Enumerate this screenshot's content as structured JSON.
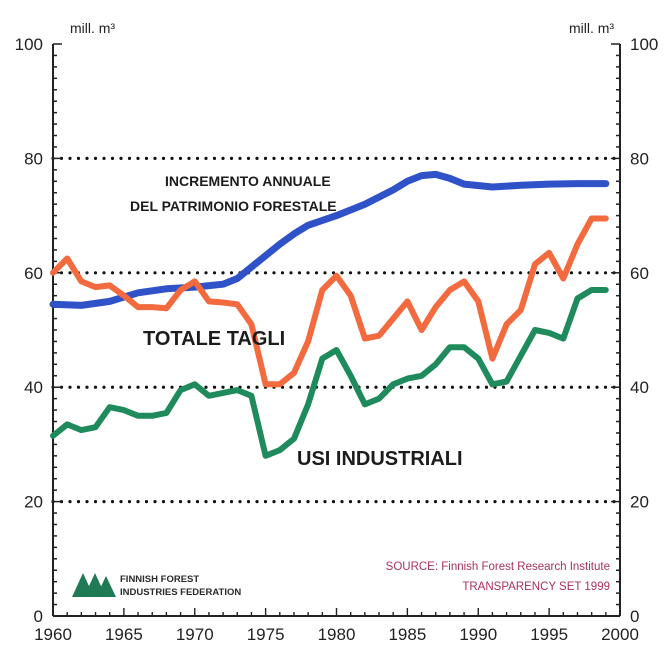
{
  "chart_data": {
    "type": "line",
    "y_unit_left": "mill. m³",
    "y_unit_right": "mill. m³",
    "xlim": [
      1960,
      2000
    ],
    "ylim": [
      0,
      100
    ],
    "x_ticks": [
      1960,
      1965,
      1970,
      1975,
      1980,
      1985,
      1990,
      1995,
      2000
    ],
    "y_ticks": [
      0,
      20,
      40,
      60,
      80,
      100
    ],
    "grid": "dotted horizontal at 20, 40, 60, 80",
    "series": [
      {
        "name": "INCREMENTO ANNUALE DEL PATRIMONIO FORESTALE",
        "label_lines": [
          "INCREMENTO ANNUALE",
          "DEL PATRIMONIO FORESTALE"
        ],
        "color": "#2f52c9",
        "points": [
          [
            1960,
            54.5
          ],
          [
            1962,
            54.3
          ],
          [
            1964,
            55
          ],
          [
            1966,
            56.5
          ],
          [
            1968,
            57.2
          ],
          [
            1970,
            57.5
          ],
          [
            1972,
            58
          ],
          [
            1973,
            59
          ],
          [
            1974,
            61
          ],
          [
            1975,
            63
          ],
          [
            1976,
            65
          ],
          [
            1977,
            66.8
          ],
          [
            1978,
            68.3
          ],
          [
            1980,
            70
          ],
          [
            1982,
            72
          ],
          [
            1984,
            74.5
          ],
          [
            1985,
            76
          ],
          [
            1986,
            77
          ],
          [
            1987,
            77.2
          ],
          [
            1988,
            76.5
          ],
          [
            1989,
            75.5
          ],
          [
            1991,
            75
          ],
          [
            1993,
            75.3
          ],
          [
            1995,
            75.5
          ],
          [
            1997,
            75.6
          ],
          [
            1999,
            75.6
          ]
        ]
      },
      {
        "name": "TOTALE TAGLI",
        "color": "#f26a3d",
        "points": [
          [
            1960,
            60
          ],
          [
            1961,
            62.5
          ],
          [
            1962,
            58.5
          ],
          [
            1963,
            57.5
          ],
          [
            1964,
            57.8
          ],
          [
            1965,
            56
          ],
          [
            1966,
            54
          ],
          [
            1967,
            54
          ],
          [
            1968,
            53.8
          ],
          [
            1969,
            57
          ],
          [
            1970,
            58.5
          ],
          [
            1971,
            55
          ],
          [
            1972,
            54.8
          ],
          [
            1973,
            54.5
          ],
          [
            1974,
            51
          ],
          [
            1975,
            40.5
          ],
          [
            1976,
            40.5
          ],
          [
            1977,
            42.5
          ],
          [
            1978,
            48
          ],
          [
            1979,
            57
          ],
          [
            1980,
            59.5
          ],
          [
            1981,
            56
          ],
          [
            1982,
            48.5
          ],
          [
            1983,
            49
          ],
          [
            1984,
            52
          ],
          [
            1985,
            55
          ],
          [
            1986,
            50
          ],
          [
            1987,
            54
          ],
          [
            1988,
            57
          ],
          [
            1989,
            58.5
          ],
          [
            1990,
            55
          ],
          [
            1991,
            45
          ],
          [
            1992,
            51
          ],
          [
            1993,
            53.5
          ],
          [
            1994,
            61.5
          ],
          [
            1995,
            63.5
          ],
          [
            1996,
            59
          ],
          [
            1997,
            65
          ],
          [
            1998,
            69.5
          ],
          [
            1999,
            69.5
          ]
        ]
      },
      {
        "name": "USI INDUSTRIALI",
        "color": "#1f8a5b",
        "points": [
          [
            1960,
            31.5
          ],
          [
            1961,
            33.5
          ],
          [
            1962,
            32.5
          ],
          [
            1963,
            33
          ],
          [
            1964,
            36.5
          ],
          [
            1965,
            36
          ],
          [
            1966,
            35
          ],
          [
            1967,
            35
          ],
          [
            1968,
            35.5
          ],
          [
            1969,
            39.5
          ],
          [
            1970,
            40.5
          ],
          [
            1971,
            38.5
          ],
          [
            1972,
            39
          ],
          [
            1973,
            39.5
          ],
          [
            1974,
            38.5
          ],
          [
            1975,
            28
          ],
          [
            1976,
            29
          ],
          [
            1977,
            31
          ],
          [
            1978,
            37
          ],
          [
            1979,
            45
          ],
          [
            1980,
            46.5
          ],
          [
            1981,
            42
          ],
          [
            1982,
            37
          ],
          [
            1983,
            38
          ],
          [
            1984,
            40.5
          ],
          [
            1985,
            41.5
          ],
          [
            1986,
            42
          ],
          [
            1987,
            44
          ],
          [
            1988,
            47
          ],
          [
            1989,
            47
          ],
          [
            1990,
            45
          ],
          [
            1991,
            40.5
          ],
          [
            1992,
            41
          ],
          [
            1993,
            45.5
          ],
          [
            1994,
            50
          ],
          [
            1995,
            49.5
          ],
          [
            1996,
            48.5
          ],
          [
            1997,
            55.5
          ],
          [
            1998,
            57
          ],
          [
            1999,
            57
          ]
        ]
      }
    ]
  },
  "logo": {
    "line1": "FINNISH FOREST",
    "line2": "INDUSTRIES FEDERATION"
  },
  "source": {
    "line1": "SOURCE: Finnish Forest Research Institute",
    "line2": "TRANSPARENCY SET 1999"
  }
}
